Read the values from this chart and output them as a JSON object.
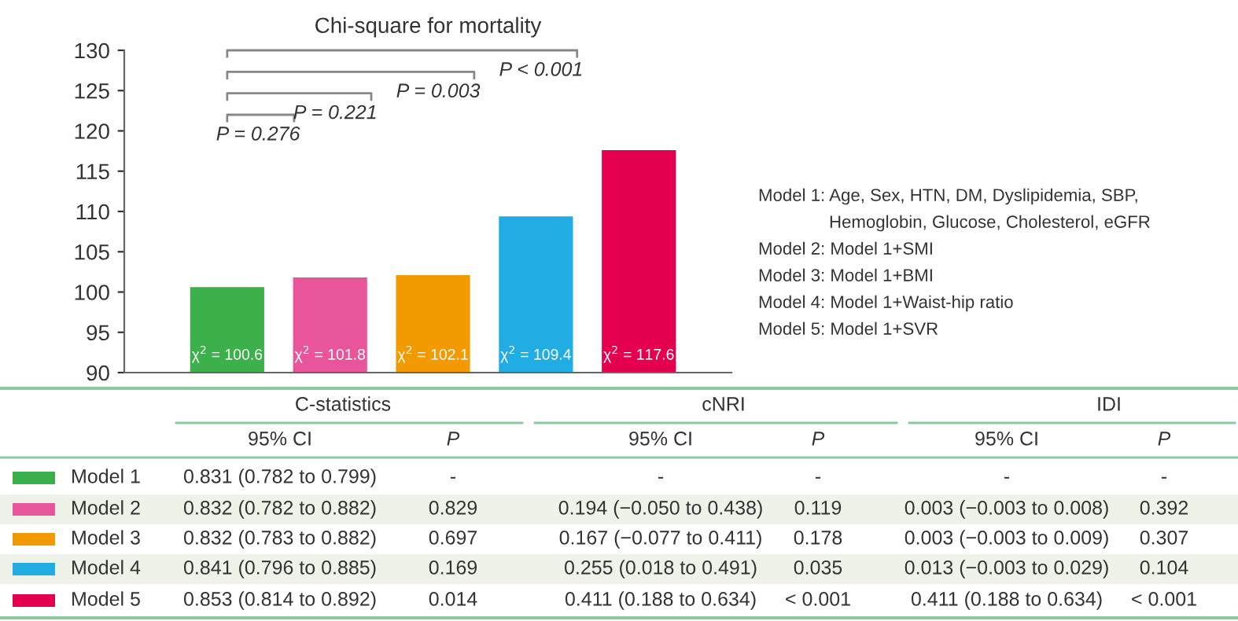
{
  "chart_data": [
    {
      "type": "bar",
      "title": "Chi-square for mortality",
      "categories": [
        null,
        null,
        null,
        null,
        null
      ],
      "values": [
        100.6,
        101.8,
        102.1,
        109.4,
        117.6
      ],
      "colors": [
        "#3cb04a",
        "#e9559a",
        "#f39a00",
        "#21ade3",
        "#e5004f"
      ],
      "value_labels": [
        "χ$^{2}$ = 100.6",
        "χ$^{2}$ = 101.8",
        "χ$^{2}$ = 102.1",
        "χ$^{2}$ = 109.4",
        "χ$^{2}$ = 117.6"
      ],
      "ylim": [
        90,
        130
      ],
      "yticks": [
        90,
        95,
        100,
        105,
        110,
        115,
        120,
        125,
        130
      ],
      "grid": false,
      "legend": false,
      "annotations": [
        "P = 0.276",
        "P = 0.221",
        "P = 0.003",
        "P < 0.001",
        "Model 1: Age, Sex, HTN, DM, Dyslipidemia, SBP,\nHemoglobin, Glucose, Cholesterol, eGFR",
        "Model 2: Model 1+SMI",
        "Model 3: Model 1+BMI",
        "Model 4: Model 1+Waist-hip ratio",
        "Model 5: Model 1+SVR"
      ]
    },
    {
      "type": "other",
      "categories": [
        "Model 1",
        "Model 2",
        "Model 3",
        "Model 4",
        "Model 5"
      ],
      "colors": [
        "#3cb04a",
        "#e9559a",
        "#f39a00",
        "#21ade3",
        "#e5004f"
      ],
      "annotations": [
        "C-statistics",
        "cNRI",
        "IDI",
        "95% CI",
        "P",
        "95% CI",
        "P",
        "95% CI",
        "P",
        "0.831 (0.782 to 0.799)",
        "-",
        "-",
        "-",
        "-",
        "-",
        "0.832 (0.782 to 0.882)",
        "0.829",
        "0.194 (−0.050 to 0.438)",
        "0.119",
        "0.003 (−0.003 to 0.008)",
        "0.392",
        "0.832 (0.783 to 0.882)",
        "0.697",
        "0.167 (−0.077 to 0.411)",
        "0.178",
        "0.003 (−0.003 to 0.009)",
        "0.307",
        "0.841 (0.796 to 0.885)",
        "0.169",
        "0.255 (0.018 to 0.491)",
        "0.035",
        "0.013 (−0.003 to 0.029)",
        "0.104",
        "0.853 (0.814 to 0.892)",
        "0.014",
        "0.411 (0.188 to 0.634)",
        "< 0.001",
        "0.411 (0.188 to 0.634)",
        "< 0.001"
      ]
    }
  ]
}
